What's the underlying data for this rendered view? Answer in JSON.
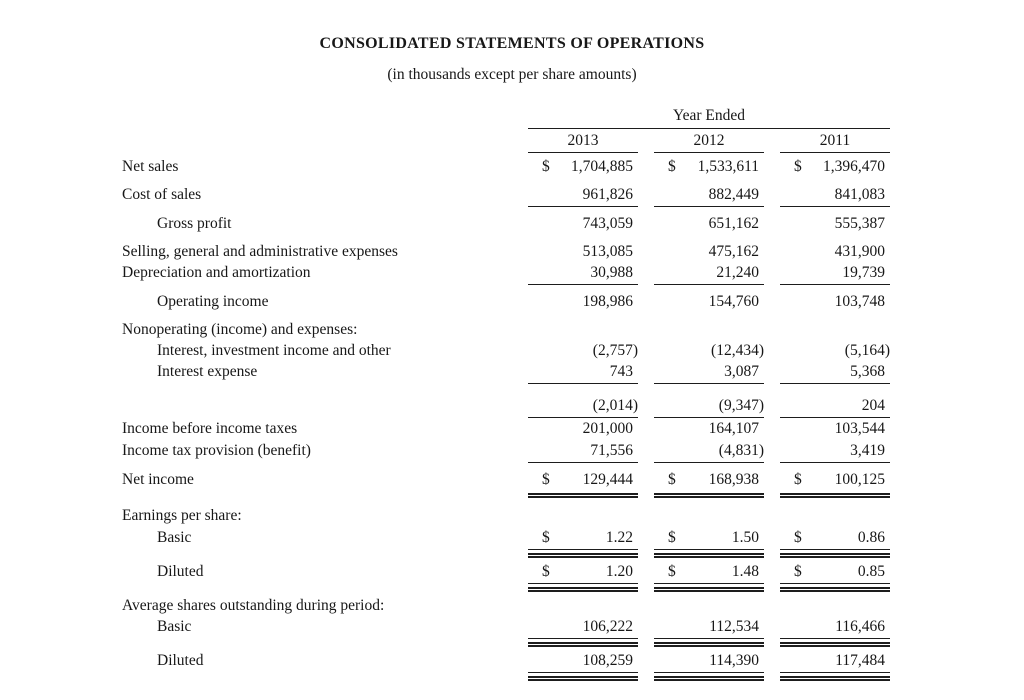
{
  "document": {
    "title": "CONSOLIDATED STATEMENTS OF OPERATIONS",
    "subtitle": "(in thousands except per share amounts)"
  },
  "table": {
    "currency": "$",
    "period_header": "Year Ended",
    "years": [
      "2013",
      "2012",
      "2011"
    ],
    "rows": [
      {
        "label": "Net sales",
        "values": [
          "1,704,885",
          "1,533,611",
          "1,396,470"
        ]
      },
      {
        "label": "Cost of sales",
        "values": [
          "961,826",
          "882,449",
          "841,083"
        ]
      },
      {
        "label": "Gross profit",
        "values": [
          "743,059",
          "651,162",
          "555,387"
        ]
      },
      {
        "label": "Selling, general and administrative expenses",
        "values": [
          "513,085",
          "475,162",
          "431,900"
        ]
      },
      {
        "label": "Depreciation and amortization",
        "values": [
          "30,988",
          "21,240",
          "19,739"
        ]
      },
      {
        "label": "Operating income",
        "values": [
          "198,986",
          "154,760",
          "103,748"
        ]
      },
      {
        "label": "Nonoperating (income) and expenses:",
        "values": []
      },
      {
        "label": "Interest, investment income and other",
        "values": [
          "(2,757)",
          "(12,434)",
          "(5,164)"
        ]
      },
      {
        "label": "Interest expense",
        "values": [
          "743",
          "3,087",
          "5,368"
        ]
      },
      {
        "label": "",
        "values": [
          "(2,014)",
          "(9,347)",
          "204"
        ]
      },
      {
        "label": "Income before income taxes",
        "values": [
          "201,000",
          "164,107",
          "103,544"
        ]
      },
      {
        "label": "Income tax provision (benefit)",
        "values": [
          "71,556",
          "(4,831)",
          "3,419"
        ]
      },
      {
        "label": "Net income",
        "values": [
          "129,444",
          "168,938",
          "100,125"
        ]
      },
      {
        "label": "Earnings per share:",
        "values": []
      },
      {
        "label": "Basic",
        "values": [
          "1.22",
          "1.50",
          "0.86"
        ]
      },
      {
        "label": "Diluted",
        "values": [
          "1.20",
          "1.48",
          "0.85"
        ]
      },
      {
        "label": "Average shares outstanding during period:",
        "values": []
      },
      {
        "label": "Basic",
        "values": [
          "106,222",
          "112,534",
          "116,466"
        ]
      },
      {
        "label": "Diluted",
        "values": [
          "108,259",
          "114,390",
          "117,484"
        ]
      }
    ]
  }
}
